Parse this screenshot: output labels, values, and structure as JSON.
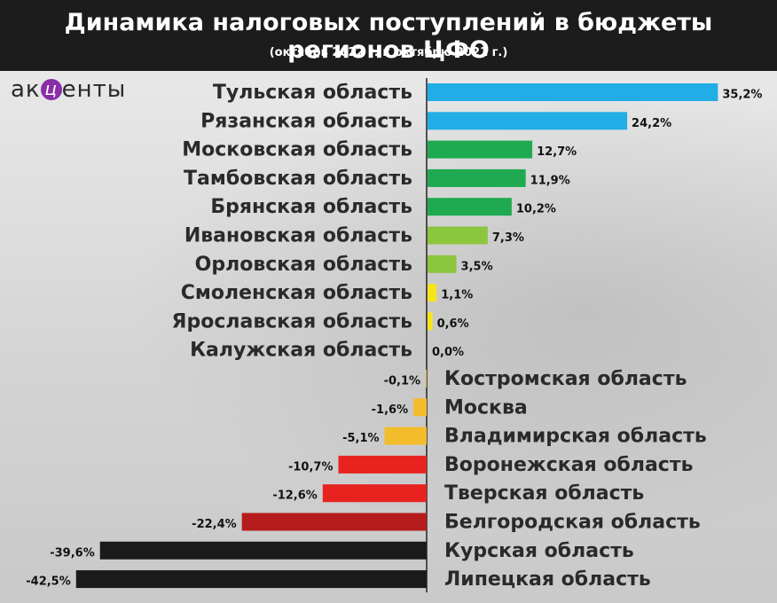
{
  "header": {
    "title": "Динамика налоговых поступлений в бюджеты регионов ЦФО",
    "subtitle": "(октябрь 2022 г. к октябрю 2021 г.)"
  },
  "logo": {
    "text_before": "ак",
    "mark": "ц",
    "text_after": "енты"
  },
  "chart_data": {
    "type": "bar",
    "orientation": "horizontal",
    "title": "Динамика налоговых поступлений в бюджеты регионов ЦФО",
    "subtitle": "(октябрь 2022 г. к октябрю 2021 г.)",
    "unit": "%",
    "xlim": [
      -42.5,
      35.2
    ],
    "grid": false,
    "categories": [
      "Тульская область",
      "Рязанская область",
      "Московская область",
      "Тамбовская область",
      "Брянская область",
      "Ивановская область",
      "Орловская область",
      "Смоленская область",
      "Ярославская область",
      "Калужская область",
      "Костромская область",
      "Москва",
      "Владимирская область",
      "Воронежская область",
      "Тверская область",
      "Белгородская область",
      "Курская область",
      "Липецкая область"
    ],
    "values": [
      35.2,
      24.2,
      12.7,
      11.9,
      10.2,
      7.3,
      3.5,
      1.1,
      0.6,
      0.0,
      -0.1,
      -1.6,
      -5.1,
      -10.7,
      -12.6,
      -22.4,
      -39.6,
      -42.5
    ],
    "value_labels": [
      "35,2%",
      "24,2%",
      "12,7%",
      "11,9%",
      "10,2%",
      "7,3%",
      "3,5%",
      "1,1%",
      "0,6%",
      "0,0%",
      "-0,1%",
      "-1,6%",
      "-5,1%",
      "-10,7%",
      "-12,6%",
      "-22,4%",
      "-39,6%",
      "-42,5%"
    ],
    "colors": [
      "#21aee6",
      "#21aee6",
      "#1faa52",
      "#1faa52",
      "#1faa52",
      "#8cc63f",
      "#8cc63f",
      "#f7e51c",
      "#f7e51c",
      "#f7e51c",
      "#f3bc2a",
      "#f3bc2a",
      "#f3bc2a",
      "#e8231f",
      "#e8231f",
      "#b71c1c",
      "#1a1a1a",
      "#1a1a1a"
    ]
  }
}
